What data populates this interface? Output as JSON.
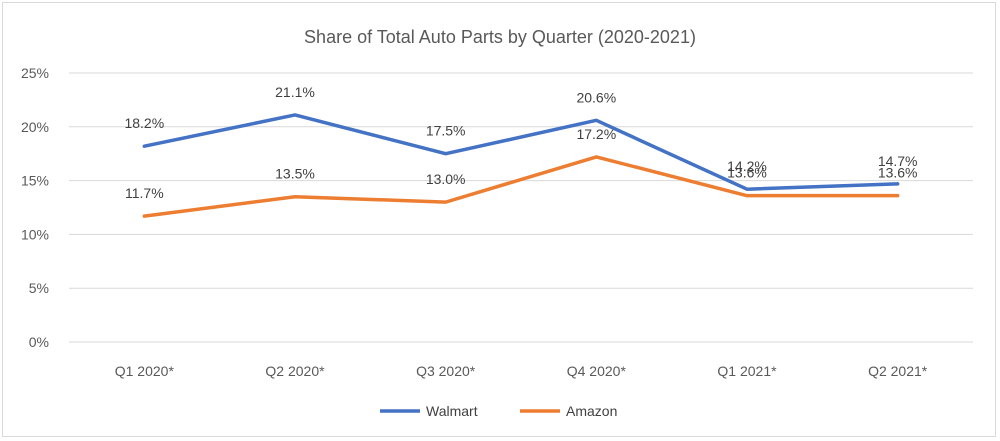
{
  "chart_data": {
    "type": "line",
    "title": "Share of Total Auto Parts by Quarter (2020-2021)",
    "categories": [
      "Q1 2020*",
      "Q2 2020*",
      "Q3 2020*",
      "Q4 2020*",
      "Q1 2021*",
      "Q2 2021*"
    ],
    "series": [
      {
        "name": "Walmart",
        "color": "#4472c4",
        "values": [
          18.2,
          21.1,
          17.5,
          20.6,
          14.2,
          14.7
        ],
        "labels": [
          "18.2%",
          "21.1%",
          "17.5%",
          "20.6%",
          "14.2%",
          "14.7%"
        ]
      },
      {
        "name": "Amazon",
        "color": "#ed7d31",
        "values": [
          11.7,
          13.5,
          13.0,
          17.2,
          13.6,
          13.6
        ],
        "labels": [
          "11.7%",
          "13.5%",
          "13.0%",
          "17.2%",
          "13.6%",
          "13.6%"
        ]
      }
    ],
    "ylim": [
      0,
      25
    ],
    "yticks": [
      0,
      5,
      10,
      15,
      20,
      25
    ],
    "ytick_labels": [
      "0%",
      "5%",
      "10%",
      "15%",
      "20%",
      "25%"
    ],
    "xlabel": "",
    "ylabel": "",
    "grid": true,
    "gridline_color": "#d9d9d9",
    "legend_position": "bottom"
  }
}
